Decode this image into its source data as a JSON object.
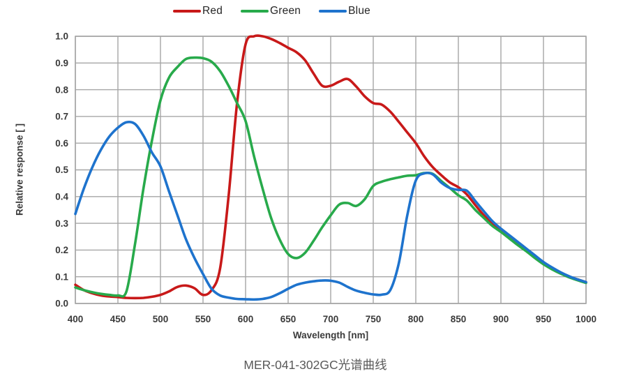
{
  "chart_data": {
    "type": "line",
    "title": "MER-041-302GC光谱曲线",
    "xlabel": "Wavelength [nm]",
    "ylabel": "Relative response [ ]",
    "xlim": [
      400,
      1000
    ],
    "ylim": [
      0.0,
      1.0
    ],
    "grid": true,
    "legend_position": "top-center",
    "x_ticks": [
      400,
      450,
      500,
      550,
      600,
      650,
      700,
      750,
      800,
      850,
      900,
      950,
      1000
    ],
    "y_ticks": [
      "0.0",
      "0.1",
      "0.2",
      "0.3",
      "0.4",
      "0.5",
      "0.6",
      "0.7",
      "0.8",
      "0.9",
      "1.0"
    ],
    "x_start": 400,
    "x_step": 10,
    "series": [
      {
        "name": "Red",
        "color": "#c81919",
        "values": [
          0.07,
          0.05,
          0.038,
          0.03,
          0.026,
          0.024,
          0.021,
          0.02,
          0.021,
          0.025,
          0.032,
          0.045,
          0.062,
          0.067,
          0.057,
          0.032,
          0.05,
          0.13,
          0.4,
          0.75,
          0.97,
          1.0,
          1.0,
          0.99,
          0.975,
          0.957,
          0.94,
          0.91,
          0.86,
          0.815,
          0.815,
          0.83,
          0.84,
          0.812,
          0.775,
          0.75,
          0.744,
          0.718,
          0.68,
          0.64,
          0.6,
          0.55,
          0.51,
          0.48,
          0.453,
          0.435,
          0.408,
          0.368,
          0.33,
          0.3,
          0.275,
          0.25,
          0.225,
          0.2,
          0.175,
          0.152,
          0.132,
          0.115,
          0.1,
          0.09,
          0.08
        ]
      },
      {
        "name": "Green",
        "color": "#28aa4b",
        "values": [
          0.06,
          0.05,
          0.042,
          0.036,
          0.032,
          0.03,
          0.045,
          0.22,
          0.43,
          0.61,
          0.76,
          0.845,
          0.885,
          0.915,
          0.92,
          0.918,
          0.905,
          0.87,
          0.815,
          0.75,
          0.683,
          0.55,
          0.43,
          0.32,
          0.24,
          0.185,
          0.17,
          0.19,
          0.235,
          0.285,
          0.33,
          0.37,
          0.376,
          0.365,
          0.39,
          0.44,
          0.456,
          0.465,
          0.472,
          0.478,
          0.48,
          0.488,
          0.485,
          0.458,
          0.432,
          0.405,
          0.385,
          0.35,
          0.32,
          0.29,
          0.268,
          0.243,
          0.218,
          0.195,
          0.17,
          0.147,
          0.128,
          0.112,
          0.098,
          0.087,
          0.077
        ]
      },
      {
        "name": "Blue",
        "color": "#1e73cd",
        "values": [
          0.335,
          0.43,
          0.51,
          0.575,
          0.625,
          0.658,
          0.678,
          0.672,
          0.628,
          0.565,
          0.513,
          0.42,
          0.33,
          0.24,
          0.17,
          0.11,
          0.055,
          0.03,
          0.022,
          0.017,
          0.016,
          0.015,
          0.017,
          0.024,
          0.038,
          0.055,
          0.07,
          0.078,
          0.083,
          0.086,
          0.085,
          0.078,
          0.062,
          0.048,
          0.04,
          0.034,
          0.033,
          0.05,
          0.15,
          0.33,
          0.46,
          0.487,
          0.483,
          0.452,
          0.432,
          0.425,
          0.422,
          0.383,
          0.345,
          0.308,
          0.28,
          0.255,
          0.23,
          0.205,
          0.18,
          0.155,
          0.135,
          0.117,
          0.102,
          0.09,
          0.08
        ]
      }
    ]
  },
  "colors": {
    "grid": "#a6a6a6",
    "axis_text": "#3a3a3a",
    "caption_text": "#595959"
  }
}
